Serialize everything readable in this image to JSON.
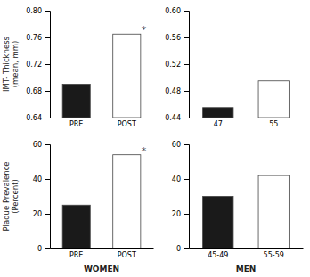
{
  "chart_data": [
    {
      "type": "bar",
      "categories": [
        "PRE",
        "POST"
      ],
      "values": [
        0.69,
        0.765
      ],
      "colors": [
        "#1a1a1a",
        "#ffffff"
      ],
      "ylim": [
        0.64,
        0.8
      ],
      "yticks": [
        0.64,
        0.68,
        0.72,
        0.76,
        {
          "value": 0.8,
          "label": "0.80"
        }
      ],
      "ylabel": "IMT- Thickness\n(mean, mm)",
      "annotations": [
        {
          "text": "*",
          "category": "POST"
        }
      ]
    },
    {
      "type": "bar",
      "categories": [
        "47",
        "55"
      ],
      "values": [
        0.455,
        0.495
      ],
      "colors": [
        "#1a1a1a",
        "#ffffff"
      ],
      "ylim": [
        0.44,
        0.6
      ],
      "yticks": [
        0.44,
        0.48,
        0.52,
        0.56,
        {
          "value": 0.6,
          "label": "0.60"
        }
      ]
    },
    {
      "type": "bar",
      "categories": [
        "PRE",
        "POST"
      ],
      "values": [
        25,
        54
      ],
      "colors": [
        "#1a1a1a",
        "#ffffff"
      ],
      "ylim": [
        0,
        60
      ],
      "yticks": [
        0,
        20,
        40,
        60
      ],
      "ylabel": "Plaque Prevalence\n(Percent)",
      "xlabel": "WOMEN",
      "annotations": [
        {
          "text": "*",
          "category": "POST"
        }
      ]
    },
    {
      "type": "bar",
      "categories": [
        "45-49",
        "55-59"
      ],
      "values": [
        30,
        42
      ],
      "colors": [
        "#1a1a1a",
        "#ffffff"
      ],
      "ylim": [
        0,
        60
      ],
      "yticks": [
        0,
        20,
        40,
        60
      ],
      "xlabel": "MEN"
    }
  ]
}
